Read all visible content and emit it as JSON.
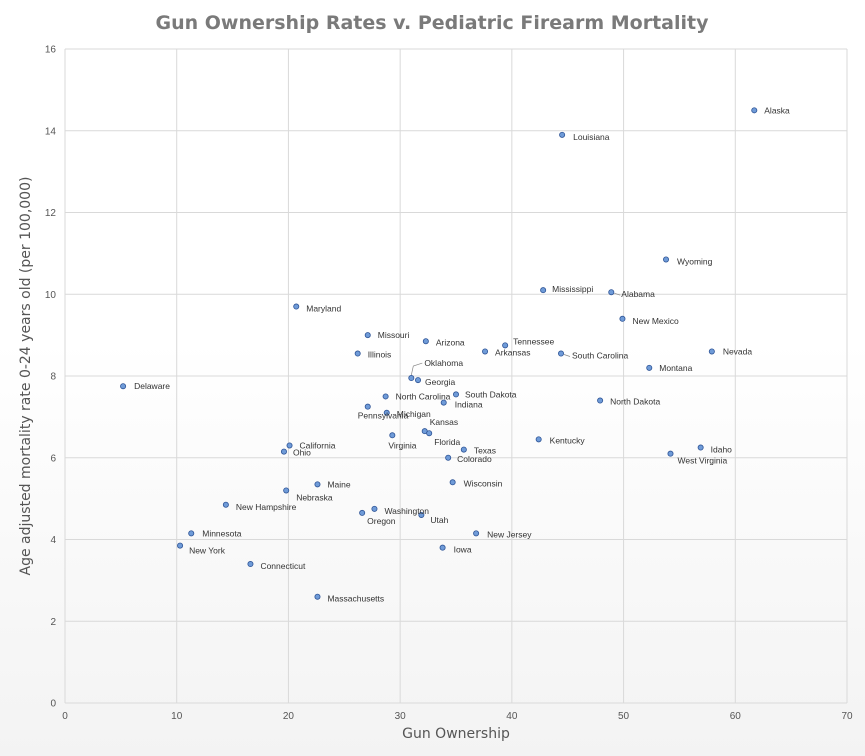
{
  "chart_data": {
    "type": "scatter",
    "title": "Gun Ownership Rates v. Pediatric Firearm Mortality",
    "xlabel": "Gun Ownership",
    "ylabel": "Age adjusted mortality rate 0-24 years old (per 100,000)",
    "xlim": [
      0,
      70
    ],
    "ylim": [
      0,
      16
    ],
    "xticks": [
      0,
      10,
      20,
      30,
      40,
      50,
      60,
      70
    ],
    "yticks": [
      0,
      2,
      4,
      6,
      8,
      10,
      12,
      14,
      16
    ],
    "grid": true,
    "points": [
      {
        "label": "Alaska",
        "x": 61.7,
        "y": 14.5
      },
      {
        "label": "Louisiana",
        "x": 44.5,
        "y": 13.9
      },
      {
        "label": "Wyoming",
        "x": 53.8,
        "y": 10.85
      },
      {
        "label": "Mississippi",
        "x": 42.8,
        "y": 10.1
      },
      {
        "label": "Alabama",
        "x": 48.9,
        "y": 10.05
      },
      {
        "label": "Maryland",
        "x": 20.7,
        "y": 9.7
      },
      {
        "label": "New Mexico",
        "x": 49.9,
        "y": 9.4
      },
      {
        "label": "Missouri",
        "x": 27.1,
        "y": 9.0
      },
      {
        "label": "Arizona",
        "x": 32.3,
        "y": 8.85
      },
      {
        "label": "Tennessee",
        "x": 39.4,
        "y": 8.75
      },
      {
        "label": "Arkansas",
        "x": 37.6,
        "y": 8.6
      },
      {
        "label": "Nevada",
        "x": 57.9,
        "y": 8.6
      },
      {
        "label": "Illinois",
        "x": 26.2,
        "y": 8.55
      },
      {
        "label": "South Carolina",
        "x": 44.4,
        "y": 8.55
      },
      {
        "label": "Montana",
        "x": 52.3,
        "y": 8.2
      },
      {
        "label": "Oklahoma",
        "x": 31.0,
        "y": 7.95
      },
      {
        "label": "Georgia",
        "x": 31.6,
        "y": 7.9
      },
      {
        "label": "Delaware",
        "x": 5.2,
        "y": 7.75
      },
      {
        "label": "South Dakota",
        "x": 35.0,
        "y": 7.55
      },
      {
        "label": "North Carolina",
        "x": 28.7,
        "y": 7.5
      },
      {
        "label": "North Dakota",
        "x": 47.9,
        "y": 7.4
      },
      {
        "label": "Indiana",
        "x": 33.9,
        "y": 7.35
      },
      {
        "label": "Pennsylvania",
        "x": 27.1,
        "y": 7.25
      },
      {
        "label": "Michigan",
        "x": 28.8,
        "y": 7.1
      },
      {
        "label": "Kansas",
        "x": 32.2,
        "y": 6.65
      },
      {
        "label": "Florida",
        "x": 32.6,
        "y": 6.6
      },
      {
        "label": "Virginia",
        "x": 29.3,
        "y": 6.55
      },
      {
        "label": "Kentucky",
        "x": 42.4,
        "y": 6.45
      },
      {
        "label": "California",
        "x": 20.1,
        "y": 6.3
      },
      {
        "label": "Idaho",
        "x": 56.9,
        "y": 6.25
      },
      {
        "label": "Texas",
        "x": 35.7,
        "y": 6.2
      },
      {
        "label": "Ohio",
        "x": 19.6,
        "y": 6.15
      },
      {
        "label": "West Virginia",
        "x": 54.2,
        "y": 6.1
      },
      {
        "label": "Colorado",
        "x": 34.3,
        "y": 6.0
      },
      {
        "label": "Wisconsin",
        "x": 34.7,
        "y": 5.4
      },
      {
        "label": "Maine",
        "x": 22.6,
        "y": 5.35
      },
      {
        "label": "Nebraska",
        "x": 19.8,
        "y": 5.2
      },
      {
        "label": "New Hampshire",
        "x": 14.4,
        "y": 4.85
      },
      {
        "label": "Washington",
        "x": 27.7,
        "y": 4.75
      },
      {
        "label": "Oregon",
        "x": 26.6,
        "y": 4.65
      },
      {
        "label": "Utah",
        "x": 31.9,
        "y": 4.6
      },
      {
        "label": "Minnesota",
        "x": 11.3,
        "y": 4.15
      },
      {
        "label": "New Jersey",
        "x": 36.8,
        "y": 4.15
      },
      {
        "label": "New York",
        "x": 10.3,
        "y": 3.85
      },
      {
        "label": "Iowa",
        "x": 33.8,
        "y": 3.8
      },
      {
        "label": "Connecticut",
        "x": 16.6,
        "y": 3.4
      },
      {
        "label": "Massachusetts",
        "x": 22.6,
        "y": 2.6
      }
    ]
  }
}
